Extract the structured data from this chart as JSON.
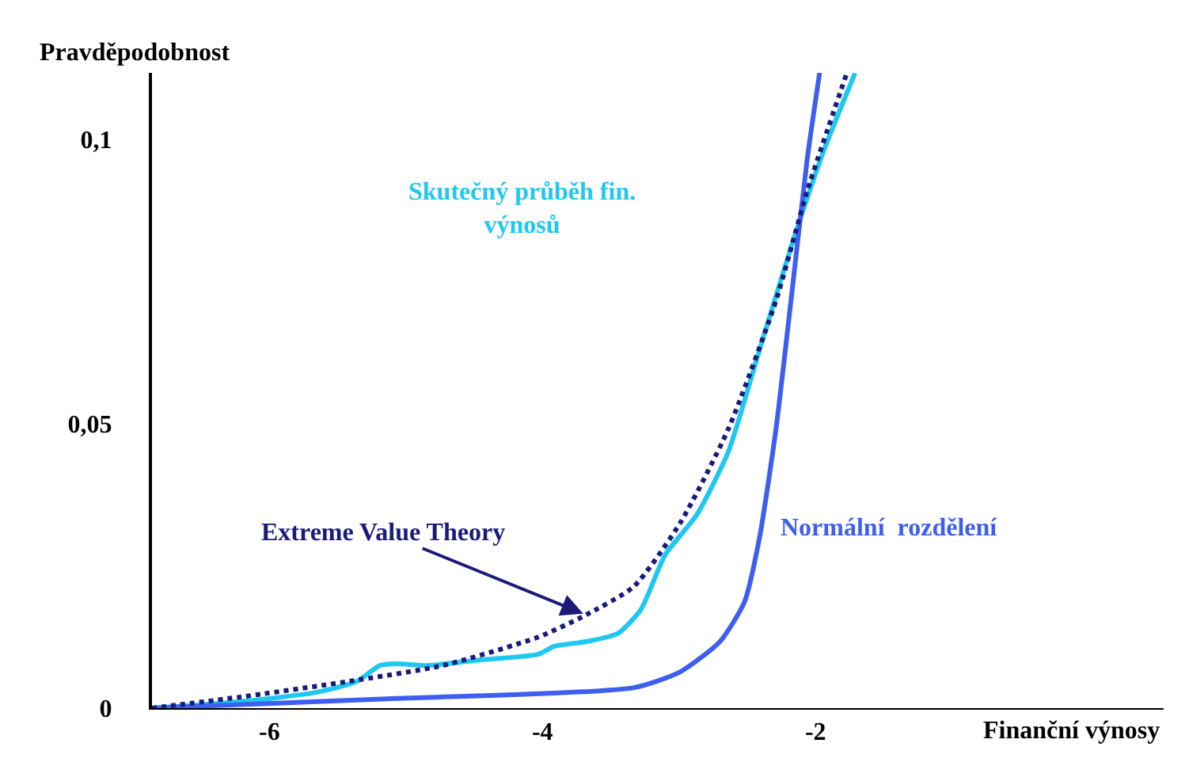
{
  "chart_data": {
    "type": "line",
    "xlabel": "Finanční výnosy",
    "ylabel": "Pravděpodobnost",
    "xlim": [
      -6.86,
      0.55
    ],
    "xticks": [
      -6,
      -4,
      -2
    ],
    "ylim": [
      0,
      0.1117
    ],
    "yticks": [
      {
        "value": 0,
        "label": "0"
      },
      {
        "value": 0.05,
        "label": "0,05"
      },
      {
        "value": 0.1,
        "label": "0,1"
      }
    ],
    "grid": false,
    "legend": false,
    "marker": "none",
    "series": [
      {
        "name": "Skutečný průběh fin. výnosů",
        "color": "#1ec8f0",
        "line_style": "solid",
        "x": [
          -6.86,
          -6.23,
          -5.65,
          -5.36,
          -5.19,
          -5.07,
          -4.84,
          -4.49,
          -4.03,
          -3.91,
          -3.68,
          -3.45,
          -3.28,
          -3.1,
          -2.87,
          -2.64,
          -2.41,
          -2.18,
          -1.94,
          -1.71
        ],
        "values": [
          0,
          0.0011,
          0.0028,
          0.0047,
          0.0075,
          0.0078,
          0.0075,
          0.0084,
          0.0095,
          0.0109,
          0.0117,
          0.0131,
          0.0173,
          0.027,
          0.034,
          0.045,
          0.063,
          0.081,
          0.098,
          0.1117
        ]
      },
      {
        "name": "Normální  rozdělení",
        "color": "#3d5ef0",
        "line_style": "solid",
        "x": [
          -6.86,
          -5.07,
          -3.33,
          -2.99,
          -2.7,
          -2.52,
          -2.41,
          -2.29,
          -2.18,
          -2.06,
          -1.97
        ],
        "values": [
          0,
          0.0017,
          0.0036,
          0.0064,
          0.0117,
          0.0187,
          0.03,
          0.049,
          0.0716,
          0.0967,
          0.1117
        ]
      },
      {
        "color": "#1a1a7a",
        "line_style": "dotted",
        "x": [
          -6.86,
          -6.23,
          -5.42,
          -4.73,
          -4.03,
          -3.68,
          -3.33,
          -2.99,
          -2.64,
          -2.29,
          -2.06,
          -1.77
        ],
        "values": [
          0,
          0.0019,
          0.0047,
          0.0075,
          0.0125,
          0.0164,
          0.0214,
          0.0326,
          0.049,
          0.0716,
          0.091,
          0.1117
        ]
      }
    ],
    "annotations": [
      {
        "text": "Extreme Value Theory",
        "x": -3.68,
        "y": 0.0164
      }
    ]
  }
}
